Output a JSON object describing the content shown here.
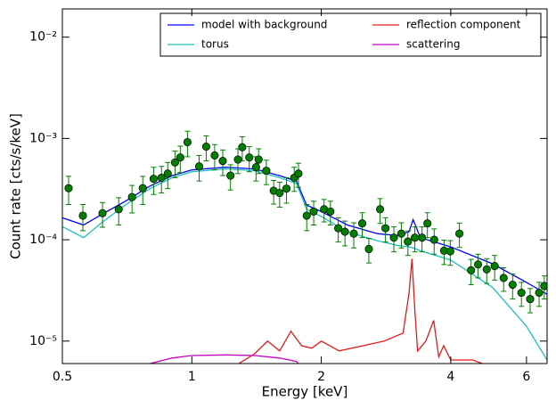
{
  "chart_data": {
    "type": "line",
    "xlabel": "Energy [keV]",
    "ylabel": "Count rate [cts/s/keV]",
    "log_x": true,
    "log_y": true,
    "xlim": [
      0.5,
      6.7
    ],
    "ylim": [
      6e-06,
      0.019
    ],
    "xticks": [
      0.5,
      1,
      2,
      4,
      6
    ],
    "yticks": [
      {
        "value": 0.01,
        "label": "10⁻²"
      },
      {
        "value": 0.001,
        "label": "10⁻³"
      },
      {
        "value": 0.0001,
        "label": "10⁻⁴"
      },
      {
        "value": 1e-05,
        "label": "10⁻⁵"
      }
    ],
    "legend": "upper right",
    "series": [
      {
        "name": "model with background",
        "color": "#0000ff",
        "x": [
          0.5,
          0.56,
          0.62,
          0.7,
          0.8,
          0.9,
          1.0,
          1.2,
          1.4,
          1.6,
          1.75,
          1.85,
          2.0,
          2.3,
          2.7,
          3.0,
          3.2,
          3.27,
          3.4,
          4,
          5,
          6,
          6.7
        ],
        "values": [
          0.000165,
          0.00014,
          0.00018,
          0.00024,
          0.00034,
          0.00043,
          0.00049,
          0.00052,
          0.0005,
          0.00043,
          0.00038,
          0.00022,
          0.00019,
          0.00014,
          0.000115,
          0.00011,
          0.00012,
          0.000158,
          0.000105,
          8.5e-05,
          5.8e-05,
          3.8e-05,
          2.9e-05
        ]
      },
      {
        "name": "torus",
        "color": "#1fbfbf",
        "x": [
          0.5,
          0.56,
          0.62,
          0.7,
          0.8,
          0.9,
          1.0,
          1.2,
          1.4,
          1.6,
          1.75,
          1.85,
          2.0,
          2.3,
          2.7,
          3.0,
          3.2,
          3.27,
          3.4,
          4,
          5,
          6,
          6.7
        ],
        "values": [
          0.000135,
          0.000105,
          0.00015,
          0.00022,
          0.00032,
          0.00041,
          0.00047,
          0.0005,
          0.00048,
          0.00041,
          0.00036,
          0.0002,
          0.00017,
          0.00012,
          9.8e-05,
          8.8e-05,
          8.5e-05,
          8.3e-05,
          7.8e-05,
          6.3e-05,
          3.4e-05,
          1.4e-05,
          6.5e-06
        ]
      },
      {
        "name": "reflection component",
        "color": "#e31a1c",
        "x": [
          1.2,
          1.4,
          1.5,
          1.6,
          1.7,
          1.8,
          1.9,
          2.0,
          2.2,
          2.5,
          2.8,
          3.1,
          3.2,
          3.25,
          3.3,
          3.35,
          3.5,
          3.65,
          3.75,
          3.85,
          4.0,
          4.5,
          5.0
        ],
        "values": [
          5e-06,
          7.5e-06,
          1e-05,
          8e-06,
          1.25e-05,
          9e-06,
          8.5e-06,
          1e-05,
          8e-06,
          9e-06,
          1e-05,
          1.2e-05,
          3e-05,
          6.5e-05,
          2e-05,
          8e-06,
          1e-05,
          1.6e-05,
          7e-06,
          9e-06,
          6.5e-06,
          6.5e-06,
          5.5e-06
        ]
      },
      {
        "name": "scattering",
        "color": "#bf00bf",
        "x": [
          0.8,
          0.9,
          1.0,
          1.2,
          1.4,
          1.6,
          1.75,
          1.8
        ],
        "values": [
          6e-06,
          6.8e-06,
          7.2e-06,
          7.3e-06,
          7.2e-06,
          6.8e-06,
          6.3e-06,
          5.5e-06
        ]
      }
    ],
    "points": {
      "color": "#007f00",
      "x": [
        0.517,
        0.558,
        0.62,
        0.676,
        0.726,
        0.769,
        0.815,
        0.85,
        0.879,
        0.914,
        0.94,
        0.977,
        1.04,
        1.08,
        1.13,
        1.18,
        1.23,
        1.28,
        1.31,
        1.36,
        1.41,
        1.43,
        1.49,
        1.55,
        1.6,
        1.66,
        1.73,
        1.77,
        1.85,
        1.92,
        2.03,
        2.1,
        2.19,
        2.27,
        2.38,
        2.49,
        2.58,
        2.74,
        2.82,
        2.95,
        3.07,
        3.18,
        3.3,
        3.43,
        3.53,
        3.66,
        3.86,
        3.99,
        4.19,
        4.46,
        4.63,
        4.85,
        5.06,
        5.31,
        5.57,
        5.84,
        6.12,
        6.42,
        6.6
      ],
      "values": [
        0.000323,
        0.000173,
        0.000183,
        0.0002,
        0.000264,
        0.000323,
        0.0004,
        0.00041,
        0.00045,
        0.00058,
        0.00065,
        0.00092,
        0.00053,
        0.00083,
        0.00068,
        0.0006,
        0.00043,
        0.00062,
        0.00082,
        0.00065,
        0.00052,
        0.00062,
        0.00048,
        0.000305,
        0.00029,
        0.00032,
        0.00041,
        0.00045,
        0.000173,
        0.00019,
        0.0002,
        0.00019,
        0.00013,
        0.00012,
        0.000115,
        0.000145,
        8.1e-05,
        0.0002,
        0.00013,
        0.000105,
        0.000115,
        9.6e-05,
        0.000105,
        0.000105,
        0.000145,
        0.0001,
        7.8e-05,
        7.7e-05,
        0.000115,
        5e-05,
        5.7e-05,
        5.1e-05,
        5.5e-05,
        4.2e-05,
        3.6e-05,
        3e-05,
        2.6e-05,
        3e-05,
        3.5e-05
      ],
      "errors": [
        0.0001,
        5e-05,
        5e-05,
        6e-05,
        8e-05,
        0.0001,
        0.00012,
        0.00012,
        0.00013,
        0.00017,
        0.00019,
        0.00026,
        0.00015,
        0.00023,
        0.00019,
        0.00017,
        0.00012,
        0.00017,
        0.00022,
        0.00018,
        0.00014,
        0.00017,
        0.00013,
        8e-05,
        8e-05,
        9e-05,
        0.00011,
        0.00012,
        5e-05,
        5e-05,
        5e-05,
        5e-05,
        3.5e-05,
        3.3e-05,
        3.2e-05,
        4e-05,
        2.2e-05,
        5.5e-05,
        3.5e-05,
        2.9e-05,
        3.2e-05,
        2.6e-05,
        2.9e-05,
        2.9e-05,
        4e-05,
        2.8e-05,
        2.1e-05,
        2.1e-05,
        3.1e-05,
        1.4e-05,
        1.5e-05,
        1.4e-05,
        1.5e-05,
        1.1e-05,
        1e-05,
        8e-06,
        7e-06,
        8e-06,
        9e-06
      ]
    }
  }
}
